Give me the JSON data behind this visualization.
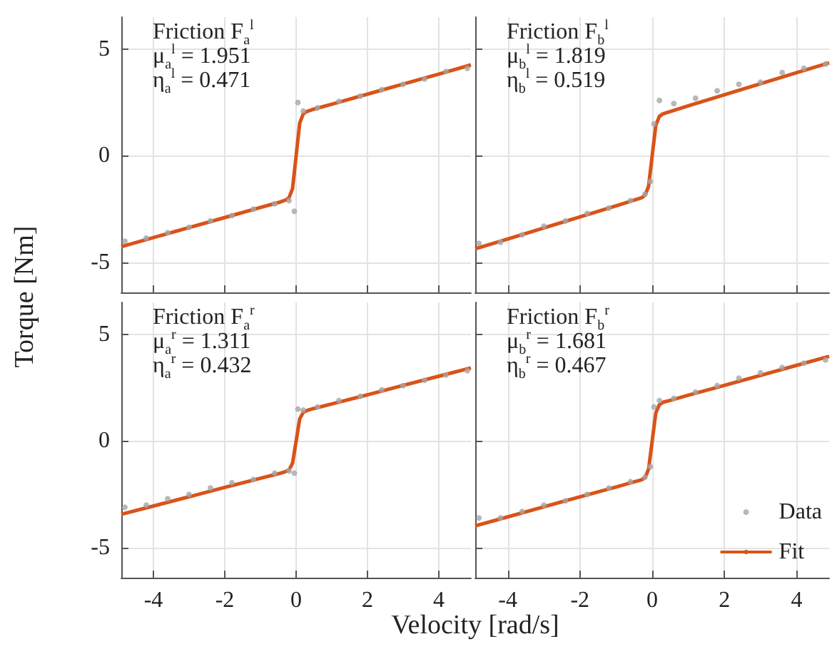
{
  "chart_data": [
    {
      "type": "line",
      "ylabel": "Torque [Nm]",
      "annotations": [
        "Friction F$_{a}$$^{l}$",
        "μ$_{a}$$^{l}$ = 1.951",
        "η$_{a}$$^{l}$ = 0.471"
      ],
      "xlim": [
        -4.9,
        4.9
      ],
      "ylim": [
        -6.4,
        6.5
      ],
      "xticks": [
        -4,
        -2,
        0,
        2,
        4
      ],
      "yticks": [
        -5,
        0,
        5
      ],
      "grid": true,
      "tick_labels": "y",
      "series": [
        {
          "type": "scatter",
          "color": "#a6a6a6",
          "x": [
            -4.8,
            -4.2,
            -3.6,
            -3,
            -2.4,
            -1.8,
            -1.2,
            -0.6,
            -0.2,
            -0.05,
            0.05,
            0.2,
            0.6,
            1.2,
            1.8,
            2.4,
            3,
            3.6,
            4.2,
            4.8
          ],
          "values": [
            -4.0,
            -3.85,
            -3.6,
            -3.35,
            -3.05,
            -2.8,
            -2.5,
            -2.25,
            -2.1,
            -2.6,
            2.5,
            2.1,
            2.25,
            2.55,
            2.8,
            3.1,
            3.35,
            3.6,
            3.95,
            4.1
          ]
        },
        {
          "color": "#d95319",
          "x": [
            -4.9,
            -4,
            -3,
            -2,
            -1,
            -0.5,
            -0.3,
            -0.2,
            -0.1,
            0,
            0.1,
            0.2,
            0.3,
            0.5,
            1,
            2,
            3,
            4,
            4.9
          ],
          "values": [
            -4.26,
            -3.83,
            -3.36,
            -2.89,
            -2.42,
            -2.19,
            -2.08,
            -1.97,
            -1.53,
            0,
            1.53,
            1.97,
            2.08,
            2.19,
            2.42,
            2.89,
            3.36,
            3.83,
            4.26
          ]
        }
      ]
    },
    {
      "type": "line",
      "annotations": [
        "Friction F$_{b}$$^{l}$",
        "μ$_{b}$$^{l}$ = 1.819",
        "η$_{b}$$^{l}$ = 0.519"
      ],
      "xlim": [
        -4.9,
        4.9
      ],
      "ylim": [
        -6.4,
        6.5
      ],
      "xticks": [
        -4,
        -2,
        0,
        2,
        4
      ],
      "yticks": [
        -5,
        0,
        5
      ],
      "grid": true,
      "tick_labels": false,
      "series": [
        {
          "type": "scatter",
          "color": "#a6a6a6",
          "x": [
            -4.8,
            -4.2,
            -3.6,
            -3,
            -2.4,
            -1.8,
            -1.2,
            -0.6,
            -0.2,
            -0.05,
            0.05,
            0.2,
            0.6,
            1.2,
            1.8,
            2.4,
            3,
            3.6,
            4.2,
            4.8
          ],
          "values": [
            -4.1,
            -4.05,
            -3.7,
            -3.3,
            -3.05,
            -2.7,
            -2.45,
            -2.1,
            -1.8,
            -1.2,
            1.5,
            2.6,
            2.45,
            2.7,
            3.05,
            3.35,
            3.45,
            3.9,
            4.1,
            4.3
          ]
        },
        {
          "color": "#d95319",
          "x": [
            -4.9,
            -4,
            -3,
            -2,
            -1,
            -0.5,
            -0.3,
            -0.2,
            -0.1,
            0,
            0.1,
            0.2,
            0.3,
            0.5,
            1,
            2,
            3,
            4,
            4.9
          ],
          "values": [
            -4.36,
            -3.9,
            -3.38,
            -2.86,
            -2.34,
            -2.08,
            -1.97,
            -1.85,
            -1.43,
            0,
            1.43,
            1.85,
            1.97,
            2.08,
            2.34,
            2.86,
            3.38,
            3.9,
            4.36
          ]
        }
      ]
    },
    {
      "type": "line",
      "annotations": [
        "Friction F$_{a}$$^{r}$",
        "μ$_{a}$$^{r}$ = 1.311",
        "η$_{a}$$^{r}$ = 0.432"
      ],
      "xlim": [
        -4.9,
        4.9
      ],
      "ylim": [
        -6.4,
        6.5
      ],
      "xticks": [
        -4,
        -2,
        0,
        2,
        4
      ],
      "yticks": [
        -5,
        0,
        5
      ],
      "grid": true,
      "series": [
        {
          "type": "scatter",
          "color": "#a6a6a6",
          "x": [
            -4.8,
            -4.2,
            -3.6,
            -3,
            -2.4,
            -1.8,
            -1.2,
            -0.6,
            -0.2,
            -0.05,
            0.05,
            0.2,
            0.6,
            1.2,
            1.8,
            2.4,
            3,
            3.6,
            4.2,
            4.8
          ],
          "values": [
            -3.1,
            -3.0,
            -2.7,
            -2.5,
            -2.2,
            -1.95,
            -1.8,
            -1.5,
            -1.4,
            -1.5,
            1.5,
            1.45,
            1.6,
            1.9,
            2.1,
            2.4,
            2.6,
            2.85,
            3.1,
            3.3
          ]
        },
        {
          "color": "#d95319",
          "x": [
            -4.9,
            -4,
            -3,
            -2,
            -1,
            -0.5,
            -0.3,
            -0.2,
            -0.1,
            0,
            0.1,
            0.2,
            0.3,
            0.5,
            1,
            2,
            3,
            4,
            4.9
          ],
          "values": [
            -3.43,
            -3.04,
            -2.61,
            -2.17,
            -1.74,
            -1.53,
            -1.43,
            -1.35,
            -1.04,
            0,
            1.04,
            1.35,
            1.43,
            1.53,
            1.74,
            2.17,
            2.61,
            3.04,
            3.43
          ]
        }
      ]
    },
    {
      "type": "line",
      "xlabel": "Velocity [rad/s]",
      "annotations": [
        "Friction F$_{b}$$^{r}$",
        "μ$_{b}$$^{r}$ = 1.681",
        "η$_{b}$$^{r}$ = 0.467"
      ],
      "xlim": [
        -4.9,
        4.9
      ],
      "ylim": [
        -6.4,
        6.5
      ],
      "xticks": [
        -4,
        -2,
        0,
        2,
        4
      ],
      "yticks": [
        -5,
        0,
        5
      ],
      "grid": true,
      "tick_labels": "x",
      "legend": "bottom right",
      "series": [
        {
          "type": "scatter",
          "name": "Data",
          "color": "#a6a6a6",
          "x": [
            -4.8,
            -4.2,
            -3.6,
            -3,
            -2.4,
            -1.8,
            -1.2,
            -0.6,
            -0.2,
            -0.05,
            0.05,
            0.2,
            0.6,
            1.2,
            1.8,
            2.4,
            3,
            3.6,
            4.2,
            4.8
          ],
          "values": [
            -3.6,
            -3.6,
            -3.3,
            -3.0,
            -2.8,
            -2.5,
            -2.2,
            -1.9,
            -1.7,
            -1.2,
            1.6,
            1.9,
            2.0,
            2.3,
            2.6,
            2.95,
            3.2,
            3.45,
            3.65,
            3.8
          ]
        },
        {
          "name": "Fit",
          "color": "#d95319",
          "x": [
            -4.9,
            -4,
            -3,
            -2,
            -1,
            -0.5,
            -0.3,
            -0.2,
            -0.1,
            0,
            0.1,
            0.2,
            0.3,
            0.5,
            1,
            2,
            3,
            4,
            4.9
          ],
          "values": [
            -3.97,
            -3.55,
            -3.08,
            -2.61,
            -2.15,
            -1.91,
            -1.82,
            -1.71,
            -1.32,
            0,
            1.32,
            1.71,
            1.82,
            1.91,
            2.15,
            2.61,
            3.08,
            3.55,
            3.97
          ]
        }
      ]
    }
  ]
}
